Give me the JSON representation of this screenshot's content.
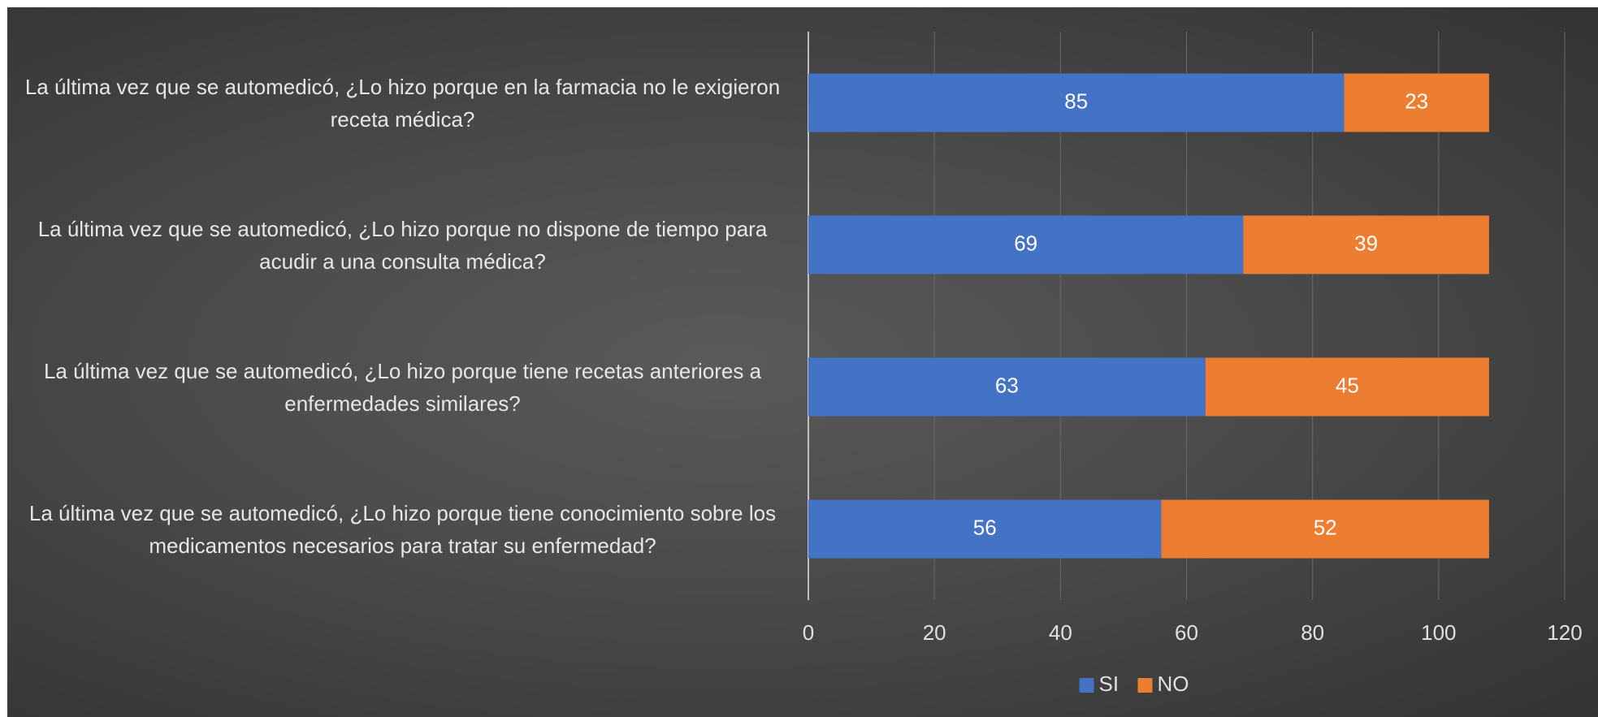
{
  "chart_data": {
    "type": "stacked_barh",
    "categories": [
      "La última vez que se automedicó, ¿Lo hizo porque en la farmacia no le exigieron receta médica?",
      "La última vez que se automedicó, ¿Lo hizo porque no dispone de tiempo para acudir a una consulta médica?",
      "La última vez que se automedicó, ¿Lo hizo porque tiene recetas anteriores a enfermedades similares?",
      "La última vez que se automedicó, ¿Lo hizo porque tiene conocimiento sobre los medicamentos necesarios para tratar su enfermedad?"
    ],
    "series": [
      {
        "name": "SI",
        "color": "#4472c4",
        "values": [
          85,
          69,
          63,
          56
        ]
      },
      {
        "name": "NO",
        "color": "#ed7d31",
        "values": [
          23,
          39,
          45,
          52
        ]
      }
    ],
    "xlim": [
      0,
      120
    ],
    "xticks": [
      0,
      20,
      40,
      60,
      80,
      100,
      120
    ],
    "grid": true,
    "legend": "bottom"
  }
}
